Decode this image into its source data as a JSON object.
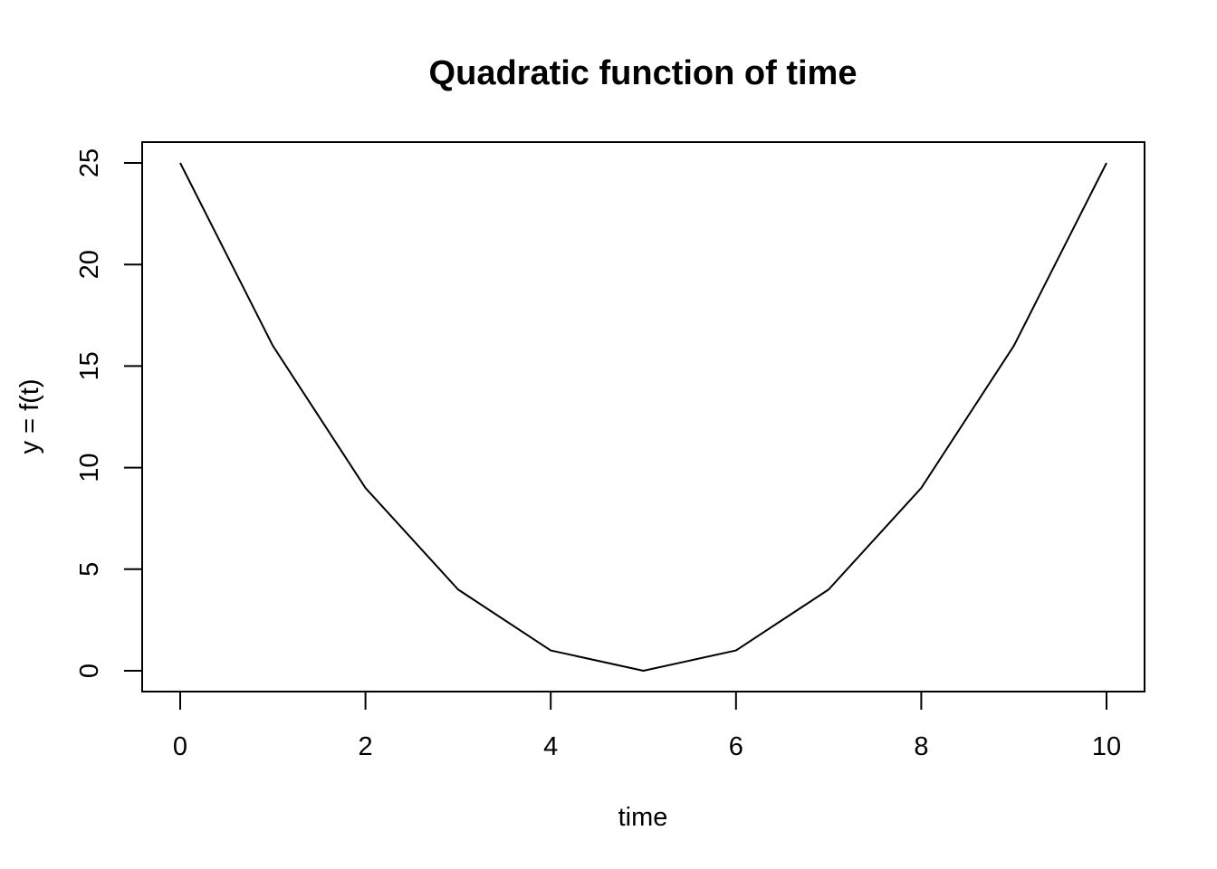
{
  "chart_data": {
    "type": "line",
    "title": "Quadratic function of time",
    "xlabel": "time",
    "ylabel": "y = f(t)",
    "x": [
      0,
      1,
      2,
      3,
      4,
      5,
      6,
      7,
      8,
      9,
      10
    ],
    "series": [
      {
        "values": [
          25,
          16,
          9,
          4,
          1,
          0,
          1,
          4,
          9,
          16,
          25
        ]
      }
    ],
    "xlim": [
      0,
      10
    ],
    "ylim": [
      0,
      25
    ],
    "xticks": [
      0,
      2,
      4,
      6,
      8,
      10
    ],
    "yticks": [
      0,
      5,
      10,
      15,
      20,
      25
    ],
    "grid": false,
    "line_color": "#000000"
  }
}
